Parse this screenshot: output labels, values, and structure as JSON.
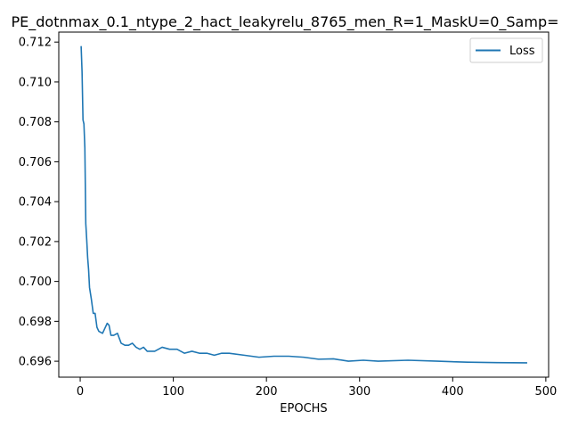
{
  "chart_data": {
    "type": "line",
    "title": "PE_dotnmax_0.1_ntype_2_hact_leakyrelu_8765_men_R=1_MaskU=0_Samp=",
    "xlabel": "EPOCHS",
    "ylabel": "",
    "xlim": [
      -23,
      503
    ],
    "ylim": [
      0.6952,
      0.7125
    ],
    "xticks": [
      0,
      100,
      200,
      300,
      400,
      500
    ],
    "xtick_labels": [
      "0",
      "100",
      "200",
      "300",
      "400",
      "500"
    ],
    "yticks": [
      0.696,
      0.698,
      0.7,
      0.702,
      0.704,
      0.706,
      0.708,
      0.71,
      0.712
    ],
    "ytick_labels": [
      "0.696",
      "0.698",
      "0.700",
      "0.702",
      "0.704",
      "0.706",
      "0.708",
      "0.710",
      "0.712"
    ],
    "grid": false,
    "legend_position": "top-right",
    "series": [
      {
        "name": "Loss",
        "color": "#1f77b4",
        "x": [
          1,
          2,
          3,
          4,
          5,
          6,
          7,
          8,
          9,
          10,
          12,
          14,
          16,
          18,
          20,
          24,
          27,
          29,
          31,
          33,
          36,
          40,
          44,
          48,
          52,
          56,
          60,
          64,
          68,
          72,
          80,
          88,
          96,
          104,
          112,
          120,
          128,
          136,
          144,
          152,
          160,
          176,
          192,
          208,
          224,
          240,
          256,
          272,
          288,
          304,
          320,
          352,
          384,
          416,
          448,
          480
        ],
        "y": [
          0.7118,
          0.7105,
          0.7081,
          0.7079,
          0.7067,
          0.7029,
          0.7021,
          0.7012,
          0.7006,
          0.6997,
          0.6991,
          0.6984,
          0.6984,
          0.6977,
          0.6975,
          0.6974,
          0.6977,
          0.6979,
          0.6978,
          0.6973,
          0.6973,
          0.6974,
          0.6969,
          0.6968,
          0.6968,
          0.6969,
          0.6967,
          0.6966,
          0.6967,
          0.6965,
          0.6965,
          0.6967,
          0.6966,
          0.6966,
          0.6964,
          0.6965,
          0.6964,
          0.6964,
          0.6963,
          0.6964,
          0.6964,
          0.6963,
          0.6962,
          0.69625,
          0.69625,
          0.6962,
          0.6961,
          0.69612,
          0.696,
          0.69605,
          0.696,
          0.69605,
          0.696,
          0.69595,
          0.69593,
          0.69592
        ]
      }
    ]
  }
}
